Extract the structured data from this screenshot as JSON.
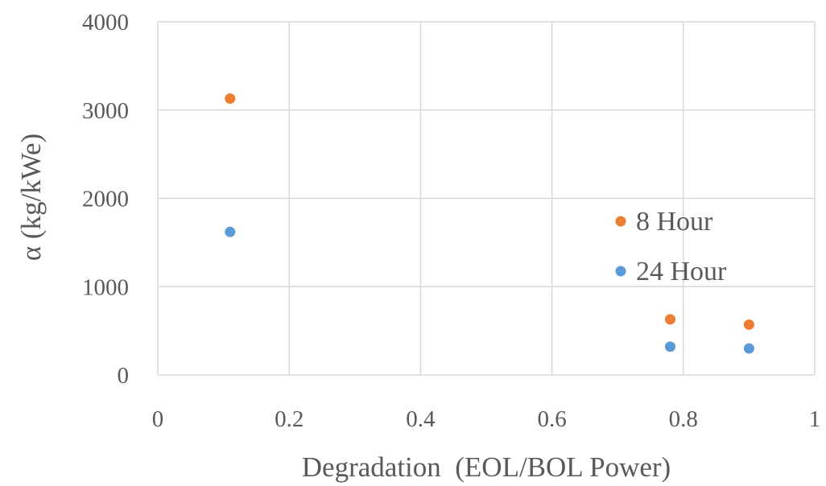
{
  "chart_data": {
    "type": "scatter",
    "title": "",
    "xlabel": "Degradation  (EOL/BOL Power)",
    "ylabel": "α (kg/kWe)",
    "xlim": [
      0,
      1
    ],
    "ylim": [
      0,
      4000
    ],
    "x_ticks": [
      0,
      0.2,
      0.4,
      0.6,
      0.8,
      1
    ],
    "x_tick_labels": [
      "0",
      "0.2",
      "0.4",
      "0.6",
      "0.8",
      "1"
    ],
    "y_ticks": [
      0,
      1000,
      2000,
      3000,
      4000
    ],
    "y_tick_labels": [
      "0",
      "1000",
      "2000",
      "3000",
      "4000"
    ],
    "grid": true,
    "legend_position": "right",
    "series": [
      {
        "name": "8 Hour",
        "color": "#ed7d31",
        "x": [
          0.11,
          0.78,
          0.9
        ],
        "y": [
          3130,
          630,
          570
        ]
      },
      {
        "name": "24 Hour",
        "color": "#5b9bd5",
        "x": [
          0.11,
          0.78,
          0.9
        ],
        "y": [
          1620,
          320,
          300
        ]
      }
    ]
  }
}
